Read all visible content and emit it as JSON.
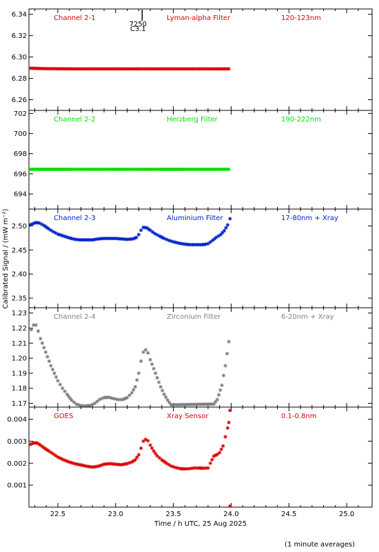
{
  "ylabel": "Calibrated Signal / (mW m⁻²)",
  "xlabel": "Time / h UTC, 25 Aug 2025",
  "footnote": "(1 minute averages)",
  "marker": {
    "label_top": "7250",
    "label_bottom": "C3.1",
    "x": 23.23
  },
  "chart_data": [
    {
      "type": "scatter",
      "channel": "Channel 2-1",
      "filter": "Lyman-alpha Filter",
      "band": "120-123nm",
      "color": "#dd0000",
      "xlim": [
        22.25,
        25.22
      ],
      "ylim": [
        6.25,
        6.345
      ],
      "yticks": [
        6.26,
        6.28,
        6.3,
        6.32,
        6.34
      ],
      "ytick_decimals": 2,
      "xy": [
        [
          22.26,
          6.2895
        ],
        [
          22.32,
          6.2893
        ],
        [
          22.4,
          6.2891
        ],
        [
          22.5,
          6.289
        ],
        [
          22.6,
          6.2889
        ],
        [
          22.7,
          6.2889
        ],
        [
          22.8,
          6.2889
        ],
        [
          22.9,
          6.2889
        ],
        [
          23.0,
          6.2889
        ],
        [
          23.1,
          6.2889
        ],
        [
          23.2,
          6.2889
        ],
        [
          23.3,
          6.2889
        ],
        [
          23.4,
          6.2889
        ],
        [
          23.5,
          6.2889
        ],
        [
          23.6,
          6.2889
        ],
        [
          23.7,
          6.2889
        ],
        [
          23.8,
          6.2889
        ],
        [
          23.9,
          6.2889
        ],
        [
          23.98,
          6.2889
        ]
      ]
    },
    {
      "type": "scatter",
      "channel": "Channel 2-2",
      "filter": "Herzberg Filter",
      "band": "190-222nm",
      "color": "#00dd00",
      "xlim": [
        22.25,
        25.22
      ],
      "ylim": [
        692.5,
        702.3
      ],
      "yticks": [
        694,
        696,
        698,
        700,
        702
      ],
      "ytick_decimals": 0,
      "xy": [
        [
          22.26,
          696.45
        ],
        [
          22.4,
          696.45
        ],
        [
          22.6,
          696.45
        ],
        [
          22.8,
          696.45
        ],
        [
          23.0,
          696.45
        ],
        [
          23.2,
          696.45
        ],
        [
          23.4,
          696.45
        ],
        [
          23.6,
          696.45
        ],
        [
          23.8,
          696.45
        ],
        [
          23.98,
          696.45
        ]
      ]
    },
    {
      "type": "scatter",
      "channel": "Channel 2-3",
      "filter": "Aluminium Filter",
      "band": "17-80nm + Xray",
      "color": "#0022cc",
      "xlim": [
        22.25,
        25.22
      ],
      "ylim": [
        2.33,
        2.535
      ],
      "yticks": [
        2.35,
        2.4,
        2.45,
        2.5
      ],
      "ytick_decimals": 2,
      "xy": [
        [
          22.25,
          2.501
        ],
        [
          22.28,
          2.504
        ],
        [
          22.31,
          2.507
        ],
        [
          22.34,
          2.506
        ],
        [
          22.38,
          2.501
        ],
        [
          22.42,
          2.494
        ],
        [
          22.46,
          2.488
        ],
        [
          22.5,
          2.483
        ],
        [
          22.55,
          2.479
        ],
        [
          22.6,
          2.475
        ],
        [
          22.65,
          2.472
        ],
        [
          22.7,
          2.471
        ],
        [
          22.75,
          2.471
        ],
        [
          22.8,
          2.471
        ],
        [
          22.85,
          2.473
        ],
        [
          22.9,
          2.474
        ],
        [
          22.95,
          2.474
        ],
        [
          23.0,
          2.474
        ],
        [
          23.05,
          2.473
        ],
        [
          23.1,
          2.472
        ],
        [
          23.15,
          2.473
        ],
        [
          23.18,
          2.476
        ],
        [
          23.2,
          2.482
        ],
        [
          23.22,
          2.491
        ],
        [
          23.24,
          2.497
        ],
        [
          23.27,
          2.496
        ],
        [
          23.3,
          2.491
        ],
        [
          23.34,
          2.484
        ],
        [
          23.38,
          2.479
        ],
        [
          23.42,
          2.474
        ],
        [
          23.46,
          2.47
        ],
        [
          23.5,
          2.467
        ],
        [
          23.55,
          2.464
        ],
        [
          23.6,
          2.462
        ],
        [
          23.65,
          2.461
        ],
        [
          23.7,
          2.461
        ],
        [
          23.75,
          2.461
        ],
        [
          23.78,
          2.462
        ],
        [
          23.8,
          2.463
        ],
        [
          23.84,
          2.47
        ],
        [
          23.87,
          2.476
        ],
        [
          23.91,
          2.482
        ],
        [
          23.94,
          2.49
        ],
        [
          23.97,
          2.502
        ],
        [
          23.99,
          2.515
        ]
      ]
    },
    {
      "type": "scatter",
      "channel": "Channel 2-4",
      "filter": "Zirconium Filter",
      "band": "6-20nm + Xray",
      "color": "#7f7f7f",
      "xlim": [
        22.25,
        25.22
      ],
      "ylim": [
        1.1675,
        1.2335
      ],
      "yticks": [
        1.17,
        1.18,
        1.19,
        1.2,
        1.21,
        1.22,
        1.23
      ],
      "ytick_decimals": 2,
      "xy": [
        [
          22.27,
          1.219
        ],
        [
          22.29,
          1.222
        ],
        [
          22.31,
          1.222
        ],
        [
          22.33,
          1.218
        ],
        [
          22.35,
          1.213
        ],
        [
          22.38,
          1.207
        ],
        [
          22.41,
          1.201
        ],
        [
          22.44,
          1.195
        ],
        [
          22.47,
          1.19
        ],
        [
          22.5,
          1.185
        ],
        [
          22.54,
          1.18
        ],
        [
          22.58,
          1.176
        ],
        [
          22.62,
          1.172
        ],
        [
          22.66,
          1.1695
        ],
        [
          22.7,
          1.1685
        ],
        [
          22.74,
          1.1683
        ],
        [
          22.78,
          1.1685
        ],
        [
          22.82,
          1.17
        ],
        [
          22.86,
          1.1725
        ],
        [
          22.9,
          1.1738
        ],
        [
          22.94,
          1.174
        ],
        [
          22.98,
          1.1732
        ],
        [
          23.02,
          1.1725
        ],
        [
          23.06,
          1.1725
        ],
        [
          23.1,
          1.1738
        ],
        [
          23.14,
          1.177
        ],
        [
          23.17,
          1.181
        ],
        [
          23.2,
          1.19
        ],
        [
          23.22,
          1.198
        ],
        [
          23.24,
          1.204
        ],
        [
          23.26,
          1.2055
        ],
        [
          23.28,
          1.2035
        ],
        [
          23.3,
          1.199
        ],
        [
          23.33,
          1.193
        ],
        [
          23.36,
          1.187
        ],
        [
          23.39,
          1.181
        ],
        [
          23.42,
          1.176
        ],
        [
          23.45,
          1.1722
        ],
        [
          23.48,
          1.169
        ],
        [
          23.85,
          1.1695
        ],
        [
          23.88,
          1.1725
        ],
        [
          23.92,
          1.182
        ],
        [
          23.95,
          1.195
        ],
        [
          23.98,
          1.211
        ]
      ]
    },
    {
      "type": "scatter",
      "channel": "GOES",
      "filter": "Xray Sensor",
      "band": "0.1-0.8nm",
      "color": "#dd0000",
      "xlim": [
        22.25,
        25.22
      ],
      "ylim": [
        0.0,
        0.00455
      ],
      "yticks": [
        0.001,
        0.002,
        0.003,
        0.004
      ],
      "ytick_decimals": 3,
      "xy": [
        [
          22.26,
          0.00285
        ],
        [
          22.29,
          0.00292
        ],
        [
          22.32,
          0.00292
        ],
        [
          22.35,
          0.00282
        ],
        [
          22.38,
          0.0027
        ],
        [
          22.42,
          0.00256
        ],
        [
          22.46,
          0.00242
        ],
        [
          22.5,
          0.00228
        ],
        [
          22.55,
          0.00215
        ],
        [
          22.6,
          0.00205
        ],
        [
          22.65,
          0.00197
        ],
        [
          22.7,
          0.00192
        ],
        [
          22.75,
          0.00186
        ],
        [
          22.8,
          0.00182
        ],
        [
          22.85,
          0.00186
        ],
        [
          22.9,
          0.00195
        ],
        [
          22.95,
          0.00198
        ],
        [
          23.0,
          0.00195
        ],
        [
          23.05,
          0.00193
        ],
        [
          23.1,
          0.00198
        ],
        [
          23.14,
          0.00205
        ],
        [
          23.17,
          0.00215
        ],
        [
          23.2,
          0.00238
        ],
        [
          23.22,
          0.00268
        ],
        [
          23.24,
          0.003
        ],
        [
          23.26,
          0.00308
        ],
        [
          23.28,
          0.00302
        ],
        [
          23.3,
          0.00282
        ],
        [
          23.33,
          0.00255
        ],
        [
          23.36,
          0.00233
        ],
        [
          23.4,
          0.00215
        ],
        [
          23.44,
          0.002
        ],
        [
          23.48,
          0.00187
        ],
        [
          23.52,
          0.0018
        ],
        [
          23.56,
          0.00175
        ],
        [
          23.6,
          0.00174
        ],
        [
          23.64,
          0.00175
        ],
        [
          23.68,
          0.00178
        ],
        [
          23.72,
          0.00178
        ],
        [
          23.76,
          0.00177
        ],
        [
          23.8,
          0.00178
        ],
        [
          23.82,
          0.002
        ],
        [
          23.85,
          0.00232
        ],
        [
          23.88,
          0.0024
        ],
        [
          23.9,
          0.00248
        ],
        [
          23.93,
          0.00278
        ],
        [
          23.95,
          0.0032
        ],
        [
          23.97,
          0.0036
        ],
        [
          23.98,
          0.00385
        ],
        [
          23.99,
          0.0044
        ],
        [
          23.99,
          5e-05
        ]
      ]
    }
  ],
  "xaxis": {
    "ticks": [
      22.5,
      23.0,
      23.5,
      24.0,
      24.5,
      25.0
    ],
    "labels": [
      "22.5",
      "23.0",
      "23.5",
      "24.0",
      "24.5",
      "25.0"
    ]
  }
}
